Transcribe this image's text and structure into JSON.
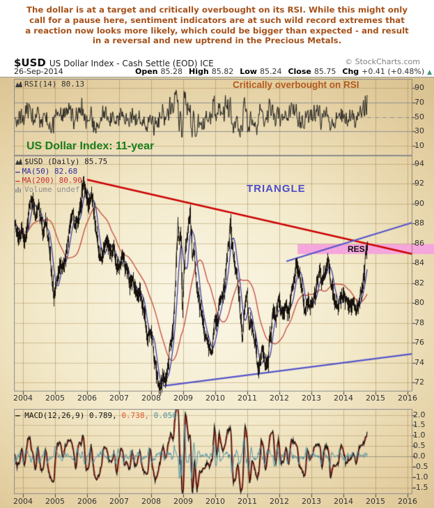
{
  "header": {
    "lines": [
      "The dollar is at a target and critically overbought on its RSI. While this might only",
      "call for a pause here, sentiment indicators are at such wild record extremes that",
      "a reaction now looks more likely, which could be bigger than expected - and result",
      "in a reversal and new uptrend in the Precious Metals."
    ]
  },
  "title": {
    "symbol": "$USD",
    "description": "US Dollar Index - Cash Settle (EOD) ICE",
    "copyright": "© StockCharts.com"
  },
  "info": {
    "date": "26-Sep-2014",
    "fields": [
      {
        "label": "Open",
        "value": "85.28"
      },
      {
        "label": "High",
        "value": "85.82"
      },
      {
        "label": "Low",
        "value": "85.24"
      },
      {
        "label": "Close",
        "value": "85.75"
      },
      {
        "label": "Chg",
        "value": "+0.41 (+0.48%)"
      }
    ],
    "direction": "up"
  },
  "rsi_panel": {
    "legend": "RSI(14) 80.13",
    "annotation": "Critically overbought on RSI",
    "y_ticks": [
      "90",
      "70",
      "50",
      "30",
      "10"
    ],
    "overbought": 70,
    "oversold": 30,
    "midline": 50
  },
  "main_panel": {
    "title": "US Dollar Index: 11-year",
    "legend_symbol": "$USD (Daily) 85.75",
    "legend_ma50": "MA(50) 82.68",
    "legend_ma200": "MA(200) 80.90",
    "legend_volume": "Volume undef",
    "annotation_triangle": "TRIANGLE",
    "annotation_res": "RES.",
    "y_ticks": [
      "94",
      "92",
      "90",
      "88",
      "86",
      "84",
      "82",
      "80",
      "78",
      "76",
      "74",
      "72"
    ]
  },
  "macd_panel": {
    "legend_dash": "—",
    "legend_name": "MACD(12,26,9)",
    "legend_v1": "0.789,",
    "legend_v2": "0.738,",
    "legend_v3": "0.050",
    "y_ticks": [
      "2.0",
      "1.5",
      "1.0",
      "0.5",
      "0.0",
      "-0.5",
      "-1.0",
      "-1.5"
    ]
  },
  "x_axis": {
    "years": [
      2004,
      2005,
      2006,
      2007,
      2008,
      2009,
      2010,
      2011,
      2012,
      2013,
      2014,
      2015,
      2016
    ]
  },
  "colors": {
    "header_text": "#A5521B",
    "rsi_annotation": "#B4591B",
    "green_title": "#1B7C1B",
    "triangle_text": "#4D4DC8",
    "trend_red": "#CC0000",
    "trend_blue": "#5353CB",
    "ma50": "#2F2F9E",
    "ma200": "#C4473C",
    "band_pink": "#F5A6DC",
    "macd_signal": "#CC2B1A",
    "macd_hist": "#4C92A4",
    "chg_arrow": "#3D9970",
    "price_bars": "#17120c"
  },
  "chart_data": {
    "type": "line",
    "title": "US Dollar Index: 11-year",
    "x_range": [
      2003.72,
      2016.15
    ],
    "price_y_range": [
      71.1,
      94.84
    ],
    "y_gridstep": 2,
    "legend_position": "top-left",
    "grid": true,
    "price_anchors": [
      [
        2003.72,
        88.4
      ],
      [
        2003.8,
        87.2
      ],
      [
        2003.88,
        86.6
      ],
      [
        2003.96,
        87.4
      ],
      [
        2004.04,
        86.3
      ],
      [
        2004.12,
        87.8
      ],
      [
        2004.2,
        89.9
      ],
      [
        2004.3,
        90.4
      ],
      [
        2004.38,
        88.8
      ],
      [
        2004.46,
        89.8
      ],
      [
        2004.54,
        88.5
      ],
      [
        2004.62,
        87.0
      ],
      [
        2004.7,
        88.2
      ],
      [
        2004.78,
        86.6
      ],
      [
        2004.86,
        84.2
      ],
      [
        2004.95,
        80.9
      ],
      [
        2005.02,
        81.5
      ],
      [
        2005.08,
        82.6
      ],
      [
        2005.16,
        84.0
      ],
      [
        2005.24,
        83.6
      ],
      [
        2005.32,
        84.8
      ],
      [
        2005.4,
        86.4
      ],
      [
        2005.48,
        88.2
      ],
      [
        2005.56,
        89.0
      ],
      [
        2005.64,
        87.4
      ],
      [
        2005.72,
        88.8
      ],
      [
        2005.8,
        90.0
      ],
      [
        2005.88,
        92.4
      ],
      [
        2005.96,
        91.0
      ],
      [
        2006.04,
        89.8
      ],
      [
        2006.12,
        91.2
      ],
      [
        2006.2,
        89.6
      ],
      [
        2006.28,
        87.2
      ],
      [
        2006.36,
        85.2
      ],
      [
        2006.44,
        84.2
      ],
      [
        2006.52,
        85.4
      ],
      [
        2006.6,
        86.4
      ],
      [
        2006.68,
        85.8
      ],
      [
        2006.76,
        85.0
      ],
      [
        2006.84,
        85.6
      ],
      [
        2006.92,
        83.4
      ],
      [
        2007.0,
        83.8
      ],
      [
        2007.08,
        84.8
      ],
      [
        2007.16,
        83.8
      ],
      [
        2007.24,
        83.2
      ],
      [
        2007.32,
        81.8
      ],
      [
        2007.4,
        82.4
      ],
      [
        2007.48,
        81.4
      ],
      [
        2007.56,
        80.7
      ],
      [
        2007.64,
        81.4
      ],
      [
        2007.72,
        80.0
      ],
      [
        2007.8,
        78.2
      ],
      [
        2007.88,
        76.3
      ],
      [
        2007.96,
        77.4
      ],
      [
        2008.04,
        76.2
      ],
      [
        2008.12,
        73.6
      ],
      [
        2008.2,
        71.9
      ],
      [
        2008.28,
        71.4
      ],
      [
        2008.36,
        72.6
      ],
      [
        2008.44,
        72.1
      ],
      [
        2008.52,
        73.4
      ],
      [
        2008.6,
        75.8
      ],
      [
        2008.68,
        77.5
      ],
      [
        2008.76,
        82.5
      ],
      [
        2008.84,
        88.2
      ],
      [
        2008.88,
        85.5
      ],
      [
        2008.92,
        87.6
      ],
      [
        2008.97,
        79.2
      ],
      [
        2009.02,
        82.8
      ],
      [
        2009.08,
        85.8
      ],
      [
        2009.16,
        87.6
      ],
      [
        2009.21,
        89.4
      ],
      [
        2009.28,
        84.8
      ],
      [
        2009.34,
        85.6
      ],
      [
        2009.42,
        81.6
      ],
      [
        2009.5,
        79.9
      ],
      [
        2009.58,
        78.4
      ],
      [
        2009.66,
        77.0
      ],
      [
        2009.74,
        76.4
      ],
      [
        2009.82,
        75.2
      ],
      [
        2009.9,
        74.9
      ],
      [
        2009.97,
        78.1
      ],
      [
        2010.04,
        77.6
      ],
      [
        2010.12,
        80.2
      ],
      [
        2010.2,
        80.8
      ],
      [
        2010.28,
        81.6
      ],
      [
        2010.36,
        84.2
      ],
      [
        2010.44,
        87.0
      ],
      [
        2010.47,
        88.4
      ],
      [
        2010.54,
        85.8
      ],
      [
        2010.62,
        83.4
      ],
      [
        2010.7,
        82.6
      ],
      [
        2010.78,
        78.8
      ],
      [
        2010.84,
        76.2
      ],
      [
        2010.92,
        79.6
      ],
      [
        2010.99,
        81.0
      ],
      [
        2011.06,
        78.0
      ],
      [
        2011.14,
        77.6
      ],
      [
        2011.22,
        76.4
      ],
      [
        2011.3,
        73.8
      ],
      [
        2011.36,
        72.9
      ],
      [
        2011.44,
        74.9
      ],
      [
        2011.5,
        75.3
      ],
      [
        2011.56,
        73.8
      ],
      [
        2011.64,
        74.3
      ],
      [
        2011.72,
        76.8
      ],
      [
        2011.8,
        79.4
      ],
      [
        2011.88,
        78.2
      ],
      [
        2011.96,
        80.3
      ],
      [
        2012.04,
        79.4
      ],
      [
        2012.12,
        78.8
      ],
      [
        2012.2,
        79.9
      ],
      [
        2012.28,
        78.9
      ],
      [
        2012.36,
        80.6
      ],
      [
        2012.44,
        82.2
      ],
      [
        2012.54,
        83.9
      ],
      [
        2012.62,
        82.8
      ],
      [
        2012.7,
        81.4
      ],
      [
        2012.79,
        78.9
      ],
      [
        2012.86,
        80.1
      ],
      [
        2012.94,
        79.7
      ],
      [
        2013.02,
        79.8
      ],
      [
        2013.1,
        80.9
      ],
      [
        2013.18,
        82.0
      ],
      [
        2013.26,
        83.3
      ],
      [
        2013.32,
        81.9
      ],
      [
        2013.4,
        83.1
      ],
      [
        2013.52,
        84.6
      ],
      [
        2013.58,
        82.4
      ],
      [
        2013.66,
        81.3
      ],
      [
        2013.74,
        80.3
      ],
      [
        2013.83,
        79.3
      ],
      [
        2013.92,
        80.7
      ],
      [
        2014.0,
        81.0
      ],
      [
        2014.08,
        80.1
      ],
      [
        2014.16,
        79.9
      ],
      [
        2014.24,
        79.8
      ],
      [
        2014.32,
        80.0
      ],
      [
        2014.4,
        79.2
      ],
      [
        2014.48,
        80.2
      ],
      [
        2014.56,
        81.4
      ],
      [
        2014.64,
        82.8
      ],
      [
        2014.7,
        84.6
      ],
      [
        2014.74,
        85.75
      ]
    ],
    "ma50_value": 82.68,
    "ma200_value": 80.9,
    "rsi_current": 80.13,
    "rsi_levels": [
      70,
      50,
      30
    ],
    "rsi_axis": [
      90,
      10
    ],
    "macd_current": [
      0.789,
      0.738,
      0.05
    ],
    "macd_axis": [
      2.0,
      -1.5
    ],
    "trendlines": [
      {
        "name": "descending-resistance",
        "color": "#CC0000",
        "points": [
          [
            2006.0,
            92.42
          ],
          [
            2016.15,
            84.93
          ]
        ]
      },
      {
        "name": "rising-support-upper",
        "color": "#5353CB",
        "points": [
          [
            2012.22,
            84.2
          ],
          [
            2016.15,
            88.1
          ]
        ]
      },
      {
        "name": "rising-support-lower",
        "color": "#5353CB",
        "points": [
          [
            2008.37,
            71.65
          ],
          [
            2016.15,
            74.88
          ]
        ]
      }
    ],
    "resistance_band": {
      "price_from": 84.93,
      "price_to": 85.93,
      "x_from": 2012.57,
      "label": "RES."
    },
    "ohlc_last": {
      "date": "26-Sep-2014",
      "open": 85.28,
      "high": 85.82,
      "low": 85.24,
      "close": 85.75,
      "chg_pct": "+0.41 (+0.48%)"
    }
  }
}
